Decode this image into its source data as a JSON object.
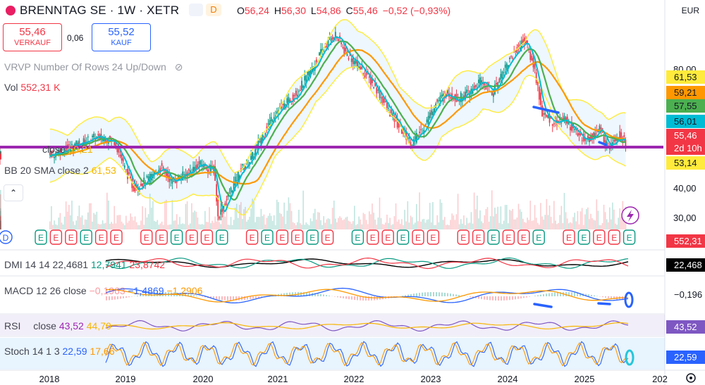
{
  "header": {
    "title": "BRENNTAG SE · 1W · XETR",
    "badge_d": "D",
    "ohlc": [
      {
        "k": "O",
        "v": "56,24"
      },
      {
        "k": "H",
        "v": "56,30"
      },
      {
        "k": "L",
        "v": "54,86"
      },
      {
        "k": "C",
        "v": "55,46"
      },
      {
        "k": "",
        "v": "−0,52 (−0,93%)"
      }
    ],
    "currency": "EUR"
  },
  "trade": {
    "sell_price": "55,46",
    "sell_label": "VERKAUF",
    "spread": "0,06",
    "buy_price": "55,52",
    "buy_label": "KAUF"
  },
  "legends": {
    "vrvp": "VRVP Number Of Rows 24 Up/Down",
    "vol_label": "Vol",
    "vol_value": "552,31 K",
    "ema_label": "close",
    "ema_value": "59,21",
    "bb_label": "BB 20 SMA close 2",
    "bb_value": "61,53",
    "dmi_label": "DMI 14 14",
    "dmi_v1": "22,4681",
    "dmi_v2": "12,7941",
    "dmi_v3": "23,8742",
    "macd_label": "MACD 12 26 close",
    "macd_v1": "−0,1963",
    "macd_v2": "−1,4869",
    "macd_v3": "−1,2906",
    "rsi_label": "RSI",
    "rsi_label2": "close",
    "rsi_v1": "43,52",
    "rsi_v2": "44,70",
    "stoch_label": "Stoch 14 1 3",
    "stoch_v1": "22,59",
    "stoch_v2": "17,66"
  },
  "chart_data": {
    "type": "candlestick",
    "x_years": [
      "2018",
      "2019",
      "2020",
      "2021",
      "2022",
      "2023",
      "2024",
      "2025",
      "202"
    ],
    "y_ticks": [
      30,
      40,
      80
    ],
    "y_tick_labels": [
      "30,00",
      "40,00",
      "80,00"
    ],
    "ylim": [
      26,
      98
    ],
    "support_level": 53.7,
    "close_series": [
      {
        "t": 2018.0,
        "v": 51
      },
      {
        "t": 2018.3,
        "v": 54
      },
      {
        "t": 2018.6,
        "v": 57
      },
      {
        "t": 2018.85,
        "v": 56
      },
      {
        "t": 2019.0,
        "v": 46
      },
      {
        "t": 2019.1,
        "v": 40
      },
      {
        "t": 2019.3,
        "v": 43
      },
      {
        "t": 2019.45,
        "v": 47
      },
      {
        "t": 2019.6,
        "v": 42
      },
      {
        "t": 2019.8,
        "v": 45
      },
      {
        "t": 2019.95,
        "v": 48
      },
      {
        "t": 2020.15,
        "v": 46
      },
      {
        "t": 2020.2,
        "v": 30
      },
      {
        "t": 2020.35,
        "v": 38
      },
      {
        "t": 2020.5,
        "v": 46
      },
      {
        "t": 2020.65,
        "v": 50
      },
      {
        "t": 2020.8,
        "v": 58
      },
      {
        "t": 2020.95,
        "v": 65
      },
      {
        "t": 2021.1,
        "v": 68
      },
      {
        "t": 2021.3,
        "v": 74
      },
      {
        "t": 2021.45,
        "v": 80
      },
      {
        "t": 2021.6,
        "v": 87
      },
      {
        "t": 2021.75,
        "v": 92
      },
      {
        "t": 2021.9,
        "v": 85
      },
      {
        "t": 2022.1,
        "v": 80
      },
      {
        "t": 2022.3,
        "v": 73
      },
      {
        "t": 2022.45,
        "v": 66
      },
      {
        "t": 2022.6,
        "v": 60
      },
      {
        "t": 2022.75,
        "v": 55
      },
      {
        "t": 2022.9,
        "v": 60
      },
      {
        "t": 2023.05,
        "v": 68
      },
      {
        "t": 2023.2,
        "v": 72
      },
      {
        "t": 2023.35,
        "v": 70
      },
      {
        "t": 2023.5,
        "v": 72
      },
      {
        "t": 2023.65,
        "v": 76
      },
      {
        "t": 2023.8,
        "v": 72
      },
      {
        "t": 2023.95,
        "v": 80
      },
      {
        "t": 2024.1,
        "v": 86
      },
      {
        "t": 2024.22,
        "v": 90
      },
      {
        "t": 2024.35,
        "v": 80
      },
      {
        "t": 2024.45,
        "v": 65
      },
      {
        "t": 2024.6,
        "v": 62
      },
      {
        "t": 2024.75,
        "v": 63
      },
      {
        "t": 2024.9,
        "v": 58
      },
      {
        "t": 2025.05,
        "v": 56
      },
      {
        "t": 2025.2,
        "v": 60
      },
      {
        "t": 2025.3,
        "v": 54
      },
      {
        "t": 2025.45,
        "v": 58
      },
      {
        "t": 2025.55,
        "v": 55.46
      }
    ],
    "price_labels": [
      {
        "value": "61,53",
        "color": "#ffeb3b",
        "text": "#131722"
      },
      {
        "value": "59,21",
        "color": "#ff9800",
        "text": "#131722"
      },
      {
        "value": "57,55",
        "color": "#4caf50",
        "text": "#131722"
      },
      {
        "value": "56,01",
        "color": "#00bcd4",
        "text": "#131722"
      },
      {
        "value": "55,46",
        "color": "#f23645",
        "text": "#ffffff"
      },
      {
        "value": "2d 10h",
        "color": "#f23645",
        "text": "#ffffff"
      },
      {
        "value": "53,14",
        "color": "#ffeb3b",
        "text": "#131722"
      },
      {
        "value": "552,31",
        "color": "#f23645",
        "text": "#ffffff"
      },
      {
        "value": "22,468",
        "color": "#000000",
        "text": "#ffffff"
      },
      {
        "value": "−0,196",
        "color": "#ffffff",
        "text": "#131722"
      },
      {
        "value": "43,52",
        "color": "#7e57c2",
        "text": "#ffffff"
      },
      {
        "value": "22,59",
        "color": "#2962ff",
        "text": "#ffffff"
      }
    ],
    "events_label": "E",
    "dividend_label": "D",
    "colors": {
      "up": "#089981",
      "down": "#f23645",
      "support": "#9c27b0",
      "ema_fast": "#00bcd4",
      "ema_mid": "#4caf50",
      "ema_slow": "#ff9800",
      "bb": "#ffeb3b",
      "annot": "#2962ff"
    }
  }
}
